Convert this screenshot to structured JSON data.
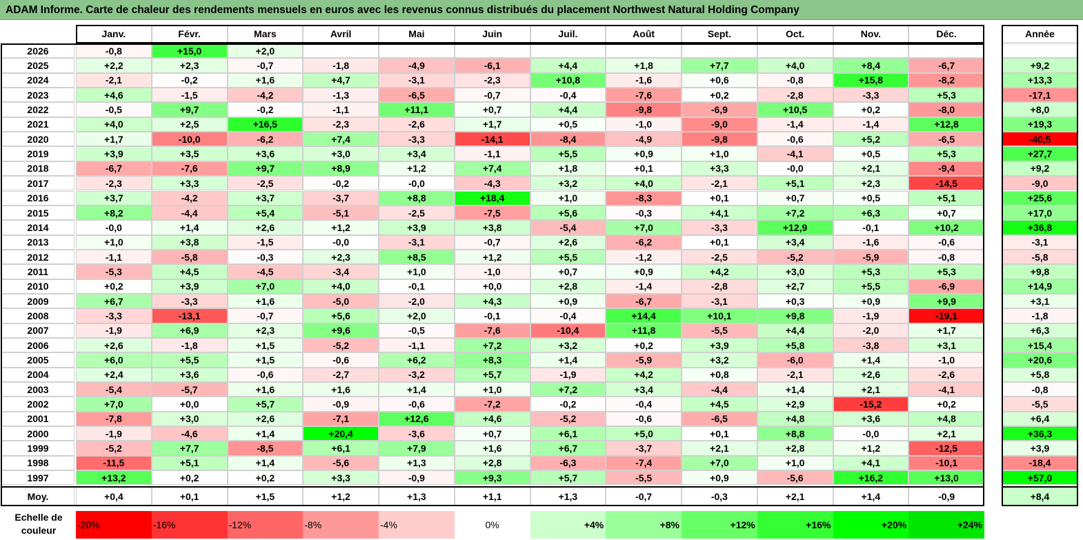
{
  "title": "ADAM Informe. Carte de chaleur des rendements mensuels en euros avec les revenus connus distribués du placement Northwest Natural Holding Company",
  "chart_data": {
    "type": "heatmap",
    "months": [
      "Janv.",
      "Févr.",
      "Mars",
      "Avril",
      "Mai",
      "Juin",
      "Juil.",
      "Août",
      "Sept.",
      "Oct.",
      "Nov.",
      "Déc."
    ],
    "year_header": "Année",
    "rows": [
      {
        "year": "2026",
        "months": [
          "-0,8",
          "+15,0",
          "+2,0",
          "",
          "",
          "",
          "",
          "",
          "",
          "",
          "",
          ""
        ],
        "annual": ""
      },
      {
        "year": "2025",
        "months": [
          "+2,2",
          "+2,3",
          "-0,7",
          "-1,8",
          "-4,9",
          "-6,1",
          "+4,4",
          "+1,8",
          "+7,7",
          "+4,0",
          "+8,4",
          "-6,7"
        ],
        "annual": "+9,2"
      },
      {
        "year": "2024",
        "months": [
          "-2,1",
          "-0,2",
          "+1,6",
          "+4,7",
          "-3,1",
          "-2,3",
          "+10,8",
          "-1,6",
          "+0,6",
          "-0,8",
          "+15,8",
          "-8,2"
        ],
        "annual": "+13,3"
      },
      {
        "year": "2023",
        "months": [
          "+4,6",
          "-1,5",
          "-4,2",
          "-1,3",
          "-6,5",
          "-0,7",
          "-0,4",
          "-7,6",
          "+0,2",
          "-2,8",
          "-3,3",
          "+5,3"
        ],
        "annual": "-17,1"
      },
      {
        "year": "2022",
        "months": [
          "-0,5",
          "+9,7",
          "-0,2",
          "-1,1",
          "+11,1",
          "+0,7",
          "+4,4",
          "-9,8",
          "-6,9",
          "+10,5",
          "+0,2",
          "-8,0"
        ],
        "annual": "+8,0"
      },
      {
        "year": "2021",
        "months": [
          "+4,0",
          "+2,5",
          "+16,5",
          "-2,3",
          "-2,6",
          "+1,7",
          "+0,5",
          "-1,0",
          "-9,0",
          "-1,4",
          "-1,4",
          "+12,8"
        ],
        "annual": "+19,3"
      },
      {
        "year": "2020",
        "months": [
          "+1,7",
          "-10,0",
          "-6,2",
          "+7,4",
          "-3,3",
          "-14,1",
          "-8,4",
          "-4,9",
          "-9,8",
          "-0,6",
          "+5,2",
          "-6,5"
        ],
        "annual": "-40,5"
      },
      {
        "year": "2019",
        "months": [
          "+3,9",
          "+3,5",
          "+3,6",
          "+3,0",
          "+3,4",
          "-1,1",
          "+5,5",
          "+0,9",
          "+1,0",
          "-4,1",
          "+0,5",
          "+5,3"
        ],
        "annual": "+27,7"
      },
      {
        "year": "2018",
        "months": [
          "-6,7",
          "-7,6",
          "+9,7",
          "+8,9",
          "+1,2",
          "+7,4",
          "+1,8",
          "+0,1",
          "+3,3",
          "-0,0",
          "+2,1",
          "-9,4"
        ],
        "annual": "+9,2"
      },
      {
        "year": "2017",
        "months": [
          "-2,3",
          "+3,3",
          "-2,5",
          "-0,2",
          "-0,0",
          "-4,3",
          "+3,2",
          "+4,0",
          "-2,1",
          "+5,1",
          "+2,3",
          "-14,5"
        ],
        "annual": "-9,0"
      },
      {
        "year": "2016",
        "months": [
          "+3,7",
          "-4,2",
          "+3,7",
          "-3,7",
          "+8,8",
          "+18,4",
          "+1,0",
          "-8,3",
          "+0,1",
          "+0,7",
          "+0,5",
          "+5,1"
        ],
        "annual": "+25,6"
      },
      {
        "year": "2015",
        "months": [
          "+8,2",
          "-4,4",
          "+5,4",
          "-5,1",
          "-2,5",
          "-7,5",
          "+5,6",
          "-0,3",
          "+4,1",
          "+7,2",
          "+6,3",
          "+0,7"
        ],
        "annual": "+17,0"
      },
      {
        "year": "2014",
        "months": [
          "-0,0",
          "+1,4",
          "+2,6",
          "+1,2",
          "+3,9",
          "+3,8",
          "-5,4",
          "+7,0",
          "-3,3",
          "+12,9",
          "-0,1",
          "+10,2"
        ],
        "annual": "+36,8"
      },
      {
        "year": "2013",
        "months": [
          "+1,0",
          "+3,8",
          "-1,5",
          "-0,0",
          "-3,1",
          "-0,7",
          "+2,6",
          "-6,2",
          "+0,1",
          "+3,4",
          "-1,6",
          "-0,6"
        ],
        "annual": "-3,1"
      },
      {
        "year": "2012",
        "months": [
          "-1,1",
          "-5,8",
          "-0,3",
          "+2,3",
          "+8,5",
          "+1,2",
          "+5,5",
          "-1,2",
          "-2,5",
          "-5,2",
          "-5,9",
          "-0,8"
        ],
        "annual": "-5,8"
      },
      {
        "year": "2011",
        "months": [
          "-5,3",
          "+4,5",
          "-4,5",
          "-3,4",
          "+1,0",
          "-1,0",
          "+0,7",
          "+0,9",
          "+4,2",
          "+3,0",
          "+5,3",
          "+5,3"
        ],
        "annual": "+9,8"
      },
      {
        "year": "2010",
        "months": [
          "+0,2",
          "+3,9",
          "+7,0",
          "+4,0",
          "-0,1",
          "+0,0",
          "+2,8",
          "-1,4",
          "-2,8",
          "+2,7",
          "+5,5",
          "-6,9"
        ],
        "annual": "+14,9"
      },
      {
        "year": "2009",
        "months": [
          "+6,7",
          "-3,3",
          "+1,6",
          "-5,0",
          "-2,0",
          "+4,3",
          "+0,9",
          "-6,7",
          "-3,1",
          "+0,3",
          "+0,9",
          "+9,9"
        ],
        "annual": "+3,1"
      },
      {
        "year": "2008",
        "months": [
          "-3,3",
          "-13,1",
          "-0,7",
          "+5,6",
          "+2,0",
          "-0,1",
          "-0,4",
          "+14,4",
          "+10,1",
          "+9,8",
          "-1,9",
          "-19,1"
        ],
        "annual": "-1,8"
      },
      {
        "year": "2007",
        "months": [
          "-1,9",
          "+6,9",
          "+2,3",
          "+9,6",
          "-0,5",
          "-7,6",
          "-10,4",
          "+11,8",
          "-5,5",
          "+4,4",
          "-2,0",
          "+1,7"
        ],
        "annual": "+6,3"
      },
      {
        "year": "2006",
        "months": [
          "+2,6",
          "-1,8",
          "+1,5",
          "-5,2",
          "-1,1",
          "+7,2",
          "+3,2",
          "+0,2",
          "+3,9",
          "+5,8",
          "-3,8",
          "+3,1"
        ],
        "annual": "+15,4"
      },
      {
        "year": "2005",
        "months": [
          "+6,0",
          "+5,5",
          "+1,5",
          "-0,6",
          "+6,2",
          "+8,3",
          "+1,4",
          "-5,9",
          "+3,2",
          "-6,0",
          "+1,4",
          "-1,0"
        ],
        "annual": "+20,6"
      },
      {
        "year": "2004",
        "months": [
          "+2,4",
          "+3,6",
          "-0,6",
          "-2,7",
          "-3,2",
          "+5,7",
          "-1,9",
          "+4,2",
          "+0,8",
          "-2,1",
          "+2,6",
          "-2,6"
        ],
        "annual": "+5,8"
      },
      {
        "year": "2003",
        "months": [
          "-5,4",
          "-5,7",
          "+1,6",
          "+1,6",
          "+1,4",
          "+1,0",
          "+7,2",
          "+3,4",
          "-4,4",
          "+1,4",
          "+2,1",
          "-4,1"
        ],
        "annual": "-0,8"
      },
      {
        "year": "2002",
        "months": [
          "+7,0",
          "+0,0",
          "+5,7",
          "-0,9",
          "-0,6",
          "-7,2",
          "-0,2",
          "-0,4",
          "+4,5",
          "+2,9",
          "-15,2",
          "+0,2"
        ],
        "annual": "-5,5"
      },
      {
        "year": "2001",
        "months": [
          "-7,8",
          "+3,0",
          "+2,6",
          "-7,1",
          "+12,6",
          "+4,6",
          "-5,2",
          "-0,6",
          "-6,5",
          "+4,8",
          "+3,6",
          "+4,8"
        ],
        "annual": "+6,4"
      },
      {
        "year": "2000",
        "months": [
          "-1,9",
          "-4,6",
          "+1,4",
          "+20,4",
          "-3,6",
          "+0,7",
          "+6,1",
          "+5,0",
          "+0,1",
          "+8,8",
          "-0,0",
          "+2,1"
        ],
        "annual": "+36,3"
      },
      {
        "year": "1999",
        "months": [
          "-5,2",
          "+7,7",
          "-8,5",
          "+6,1",
          "+7,9",
          "+1,6",
          "+6,7",
          "-3,7",
          "+2,1",
          "+2,8",
          "+1,2",
          "-12,5"
        ],
        "annual": "+3,9"
      },
      {
        "year": "1998",
        "months": [
          "-11,5",
          "+5,1",
          "+1,4",
          "-5,6",
          "+1,3",
          "+2,8",
          "-6,3",
          "-7,4",
          "+7,0",
          "+1,0",
          "+4,1",
          "-10,1"
        ],
        "annual": "-18,4"
      },
      {
        "year": "1997",
        "months": [
          "+13,2",
          "+0,2",
          "+0,2",
          "+3,3",
          "-0,9",
          "+9,3",
          "+5,7",
          "-5,5",
          "+0,9",
          "-5,6",
          "+16,2",
          "+13,0"
        ],
        "annual": "+57,0"
      }
    ],
    "average": {
      "label": "Moy.",
      "months": [
        "+0,4",
        "+0,1",
        "+1,5",
        "+1,2",
        "+1,3",
        "+1,1",
        "+1,3",
        "-0,7",
        "-0,3",
        "+2,1",
        "+1,4",
        "-0,9"
      ],
      "annual": "+8,4"
    },
    "color_scale": {
      "label_line1": "Echelle de",
      "label_line2": "couleur",
      "steps": [
        {
          "label": "-20%",
          "value": -20,
          "color": "#ff0000"
        },
        {
          "label": "-16%",
          "value": -16,
          "color": "#ff3333"
        },
        {
          "label": "-12%",
          "value": -12,
          "color": "#ff6666"
        },
        {
          "label": "-8%",
          "value": -8,
          "color": "#ff9999"
        },
        {
          "label": "-4%",
          "value": -4,
          "color": "#ffcccc"
        },
        {
          "label": "0%",
          "value": 0,
          "color": "#ffffff"
        },
        {
          "label": "+4%",
          "value": 4,
          "color": "#ccffcc"
        },
        {
          "label": "+8%",
          "value": 8,
          "color": "#99ff99"
        },
        {
          "label": "+12%",
          "value": 12,
          "color": "#66ff66"
        },
        {
          "label": "+16%",
          "value": 16,
          "color": "#33ff33"
        },
        {
          "label": "+20%",
          "value": 20,
          "color": "#00ff00"
        },
        {
          "label": "+24%",
          "value": 24,
          "color": "#00e600"
        }
      ]
    }
  }
}
